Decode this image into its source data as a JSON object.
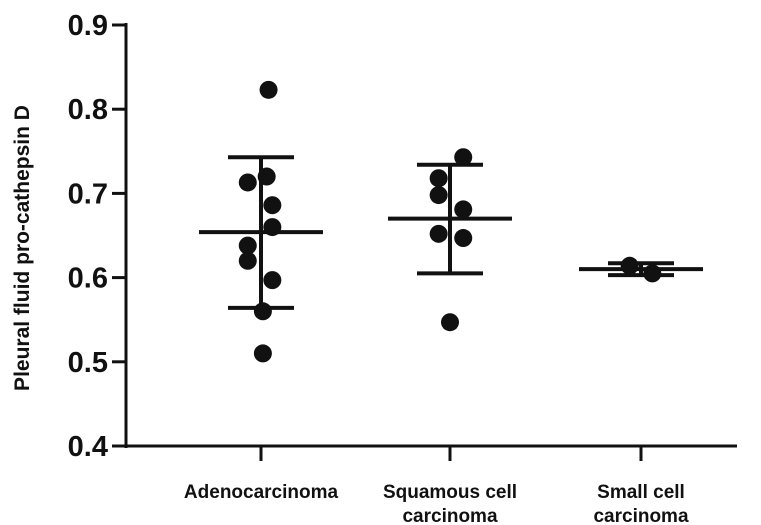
{
  "chart_data": {
    "type": "scatter",
    "ylabel": "Pleural fluid pro-cathepsin D",
    "xlabel": "",
    "ylim": [
      0.4,
      0.9
    ],
    "yticks": [
      "0.4",
      "0.5",
      "0.6",
      "0.7",
      "0.8",
      "0.9"
    ],
    "grid": false,
    "categories": [
      {
        "line1": "Adenocarcinoma",
        "line2": ""
      },
      {
        "line1": "Squamous cell",
        "line2": "carcinoma"
      },
      {
        "line1": "Small cell",
        "line2": "carcinoma"
      }
    ],
    "groups": [
      {
        "points": [
          {
            "dx": 0.04,
            "y": 0.823
          },
          {
            "dx": 0.03,
            "y": 0.72
          },
          {
            "dx": -0.07,
            "y": 0.713
          },
          {
            "dx": 0.06,
            "y": 0.686
          },
          {
            "dx": 0.06,
            "y": 0.66
          },
          {
            "dx": -0.07,
            "y": 0.638
          },
          {
            "dx": -0.07,
            "y": 0.62
          },
          {
            "dx": 0.06,
            "y": 0.597
          },
          {
            "dx": 0.01,
            "y": 0.56
          },
          {
            "dx": 0.01,
            "y": 0.51
          }
        ],
        "mean": 0.654,
        "upper": 0.743,
        "lower": 0.564
      },
      {
        "points": [
          {
            "dx": 0.07,
            "y": 0.743
          },
          {
            "dx": -0.06,
            "y": 0.718
          },
          {
            "dx": -0.06,
            "y": 0.698
          },
          {
            "dx": 0.07,
            "y": 0.681
          },
          {
            "dx": -0.06,
            "y": 0.652
          },
          {
            "dx": 0.07,
            "y": 0.647
          },
          {
            "dx": 0.0,
            "y": 0.547
          }
        ],
        "mean": 0.67,
        "upper": 0.734,
        "lower": 0.605
      },
      {
        "points": [
          {
            "dx": -0.06,
            "y": 0.614
          },
          {
            "dx": 0.06,
            "y": 0.605
          }
        ],
        "mean": 0.61,
        "upper": 0.617,
        "lower": 0.603
      }
    ]
  }
}
